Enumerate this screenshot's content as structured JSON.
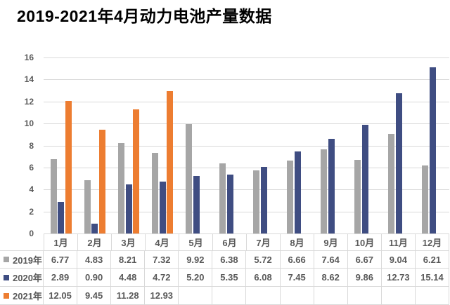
{
  "title": "2019-2021年4月动力电池产量数据",
  "colors": {
    "series_2019": "#A6A6A6",
    "series_2020": "#3F4D82",
    "series_2021": "#ED7D31",
    "gridline": "#D9D9D9",
    "axis_text": "#595959",
    "title_text": "#000000",
    "background": "#FFFFFF"
  },
  "chart_data": {
    "type": "bar",
    "title": "2019-2021年4月动力电池产量数据",
    "categories": [
      "1月",
      "2月",
      "3月",
      "4月",
      "5月",
      "6月",
      "7月",
      "8月",
      "9月",
      "10月",
      "11月",
      "12月"
    ],
    "series": [
      {
        "name": "2019年",
        "color": "#A6A6A6",
        "values": [
          6.77,
          4.83,
          8.21,
          7.32,
          9.92,
          6.38,
          5.72,
          6.66,
          7.64,
          6.67,
          9.04,
          6.21
        ]
      },
      {
        "name": "2020年",
        "color": "#3F4D82",
        "values": [
          2.89,
          0.9,
          4.48,
          4.72,
          5.2,
          5.35,
          6.08,
          7.45,
          8.62,
          9.86,
          12.73,
          15.14
        ]
      },
      {
        "name": "2021年",
        "color": "#ED7D31",
        "values": [
          12.05,
          9.45,
          11.28,
          12.93,
          null,
          null,
          null,
          null,
          null,
          null,
          null,
          null
        ]
      }
    ],
    "xlabel": "",
    "ylabel": "",
    "ylim": [
      0,
      16
    ],
    "ytick_step": 2,
    "grid": true,
    "legend_position": "table-left",
    "table_legend_labels": [
      "2019年",
      "2020年",
      "2021年"
    ]
  }
}
